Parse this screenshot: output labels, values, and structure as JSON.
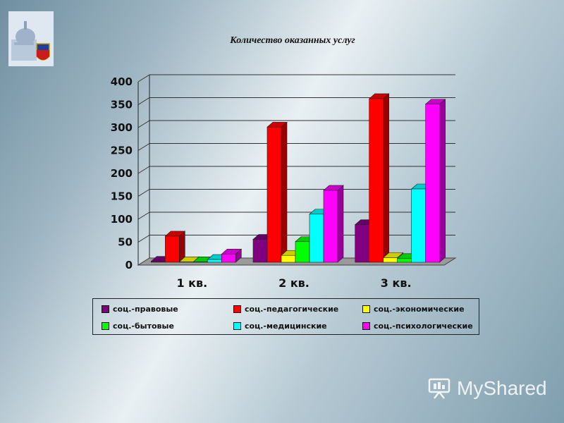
{
  "slide": {
    "title": "Количество оказанных услуг",
    "brand_text": "MyShared",
    "background": "#9fb6c3"
  },
  "chart_data": {
    "type": "bar",
    "title": "Количество оказанных услуг",
    "categories": [
      "1 кв.",
      "2 кв.",
      "3 кв."
    ],
    "ylim": [
      0,
      400
    ],
    "yticks": [
      "0",
      "50",
      "100",
      "150",
      "200",
      "250",
      "300",
      "350",
      "400"
    ],
    "grid": true,
    "legend_position": "bottom",
    "series": [
      {
        "name": "соц.-правовые",
        "color": "#800080",
        "values": [
          2,
          50,
          82
        ]
      },
      {
        "name": "соц.-педагогические",
        "color": "#ff0000",
        "values": [
          57,
          295,
          357
        ]
      },
      {
        "name": "соц.-экономические",
        "color": "#ffff00",
        "values": [
          1,
          15,
          10
        ]
      },
      {
        "name": "соц.-бытовые",
        "color": "#00ff00",
        "values": [
          1,
          45,
          8
        ]
      },
      {
        "name": "соц.-медицинские",
        "color": "#00ffff",
        "values": [
          6,
          105,
          160
        ]
      },
      {
        "name": "соц.-психологические",
        "color": "#ff00ff",
        "values": [
          18,
          157,
          345
        ]
      }
    ]
  }
}
